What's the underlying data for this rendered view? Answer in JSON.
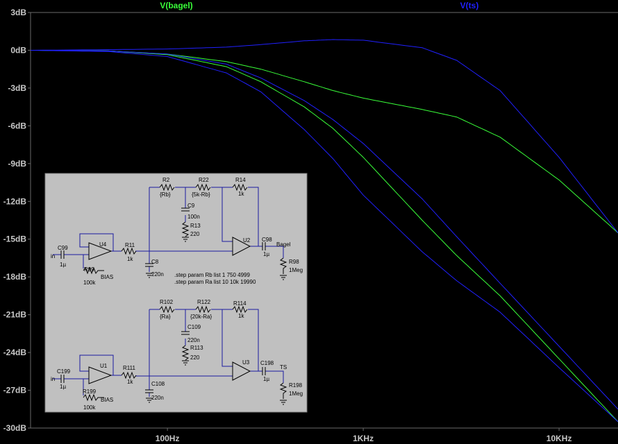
{
  "chart_data": {
    "type": "line",
    "title": "",
    "xlabel": "",
    "ylabel": "",
    "x_scale": "log",
    "xlim": [
      20,
      20000
    ],
    "ylim": [
      -30,
      3
    ],
    "grid": false,
    "x_ticks": [
      "100Hz",
      "1KHz",
      "10KHz"
    ],
    "x_tick_values": [
      100,
      1000,
      10000
    ],
    "y_ticks": [
      "3dB",
      "0dB",
      "-3dB",
      "-6dB",
      "-9dB",
      "-12dB",
      "-15dB",
      "-18dB",
      "-21dB",
      "-24dB",
      "-27dB",
      "-30dB"
    ],
    "y_tick_values": [
      3,
      0,
      -3,
      -6,
      -9,
      -12,
      -15,
      -18,
      -21,
      -24,
      -27,
      -30
    ],
    "legend": [
      {
        "name": "V(bagel)",
        "color": "#39ff39"
      },
      {
        "name": "V(ts)",
        "color": "#2020ff"
      }
    ],
    "series": [
      {
        "name": "V(bagel)",
        "color": "#39ff39",
        "x": [
          20,
          50,
          100,
          200,
          300,
          500,
          700,
          1000,
          2000,
          3000,
          5000,
          10000,
          20000
        ],
        "y": [
          0,
          -0.05,
          -0.3,
          -0.9,
          -1.5,
          -2.5,
          -3.2,
          -3.8,
          -4.7,
          -5.3,
          -6.9,
          -10.3,
          -14.5
        ]
      },
      {
        "name": "V(bagel)",
        "color": "#39ff39",
        "x": [
          20,
          50,
          100,
          200,
          300,
          500,
          700,
          1000,
          2000,
          3000,
          5000,
          10000,
          20000
        ],
        "y": [
          0,
          -0.05,
          -0.35,
          -1.3,
          -2.5,
          -4.5,
          -6.2,
          -8.5,
          -13.5,
          -16.3,
          -19.5,
          -24.5,
          -29.5
        ]
      },
      {
        "name": "V(ts)",
        "color": "#2020ff",
        "x": [
          20,
          50,
          100,
          200,
          300,
          500,
          700,
          1000,
          2000,
          3000,
          5000,
          10000,
          20000
        ],
        "y": [
          0,
          0.05,
          0.1,
          0.25,
          0.45,
          0.75,
          0.85,
          0.8,
          0.2,
          -0.8,
          -3.2,
          -8.5,
          -14.5
        ]
      },
      {
        "name": "V(ts)",
        "color": "#2020ff",
        "x": [
          20,
          50,
          100,
          200,
          300,
          500,
          700,
          1000,
          2000,
          3000,
          5000,
          10000,
          20000
        ],
        "y": [
          0,
          -0.05,
          -0.3,
          -1.1,
          -2.2,
          -4.0,
          -5.5,
          -7.4,
          -11.8,
          -14.8,
          -18.5,
          -23.5,
          -28.5
        ]
      },
      {
        "name": "V(ts)",
        "color": "#2020ff",
        "x": [
          20,
          50,
          100,
          200,
          300,
          500,
          700,
          1000,
          2000,
          3000,
          5000,
          10000,
          20000
        ],
        "y": [
          0,
          -0.1,
          -0.5,
          -1.8,
          -3.3,
          -6.3,
          -8.6,
          -11.5,
          -16.0,
          -18.3,
          -20.8,
          -25.2,
          -29.5
        ]
      }
    ],
    "annotations": [
      {
        "text": ".step param Rb list 1 750 4999"
      },
      {
        "text": ".step param Ra list 10 10k 19990"
      }
    ]
  },
  "schematic": {
    "upper": {
      "labels": {
        "r2": "R2",
        "r2v": "{Rb}",
        "r22": "R22",
        "r22v": "{5k-Rb}",
        "r14": "R14",
        "r14v": "1k",
        "c9": "C9",
        "c9v": "100n",
        "r13": "R13",
        "r13v": "220",
        "u4": "U4",
        "u2": "U2",
        "c99": "C99",
        "c99v": "1µ",
        "in": "in",
        "r11": "R11",
        "r11v": "1k",
        "r99": "R99",
        "r99v": "100k",
        "bias": "BIAS",
        "c8": "C8",
        "c8v": "220n",
        "c98": "C98",
        "c98v": "1µ",
        "net": "Bagel",
        "r98": "R98",
        "r98v": "1Meg"
      }
    },
    "lower": {
      "labels": {
        "r102": "R102",
        "r102v": "{Ra}",
        "r122": "R122",
        "r122v": "{20k-Ra}",
        "r114": "R114",
        "r114v": "1k",
        "c109": "C109",
        "c109v": "220n",
        "r113": "R113",
        "r113v": "220",
        "u1": "U1",
        "u3": "U3",
        "c199": "C199",
        "c199v": "1µ",
        "in": "in",
        "r111": "R111",
        "r111v": "1k",
        "r199": "R199",
        "r199v": "100k",
        "bias": "BIAS",
        "c108": "C108",
        "c108v": "220n",
        "c198": "C198",
        "c198v": "1µ",
        "net": "TS",
        "r198": "R198",
        "r198v": "1Meg"
      }
    }
  }
}
